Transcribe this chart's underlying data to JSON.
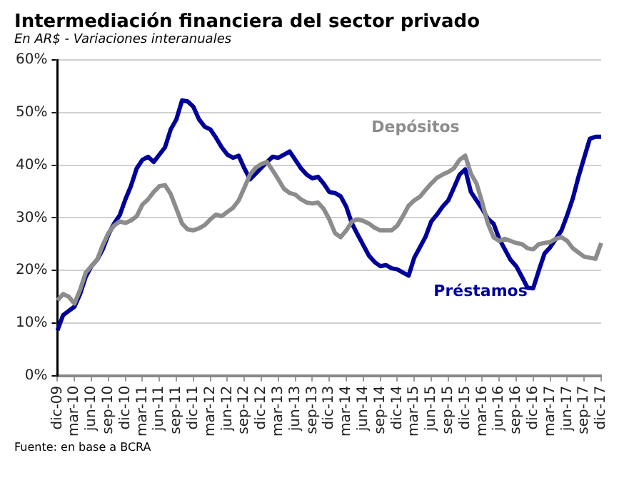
{
  "chart_data": {
    "type": "line",
    "title": "Intermediación financiera del sector privado",
    "subtitle": "En AR$ - Variaciones interanuales",
    "categories": [
      "dic-09",
      null,
      null,
      "mar-10",
      null,
      null,
      "jun-10",
      null,
      null,
      "sep-10",
      null,
      null,
      "dic-10",
      null,
      null,
      "mar-11",
      null,
      null,
      "jun-11",
      null,
      null,
      "sep-11",
      null,
      null,
      "dic-11",
      null,
      null,
      "mar-12",
      null,
      null,
      "jun-12",
      null,
      null,
      "sep-12",
      null,
      null,
      "dic-12",
      null,
      null,
      "mar-13",
      null,
      null,
      "jun-13",
      null,
      null,
      "sep-13",
      null,
      null,
      "dic-13",
      null,
      null,
      "mar-14",
      null,
      null,
      "jun-14",
      null,
      null,
      "sep-14",
      null,
      null,
      "dic-14",
      null,
      null,
      "mar-15",
      null,
      null,
      "jun-15",
      null,
      null,
      "sep-15",
      null,
      null,
      "dic-15",
      null,
      null,
      "mar-16",
      null,
      null,
      "jun-16",
      null,
      null,
      "sep-16",
      null,
      null,
      "dic-16",
      null,
      null,
      "mar-17",
      null,
      null,
      "jun-17",
      null,
      null,
      "sep-17",
      null,
      null,
      "dic-17"
    ],
    "series": [
      {
        "name": "Depósitos",
        "color": "#8c8c8c",
        "values": [
          14.3,
          15.5,
          15,
          13.7,
          16.3,
          19.6,
          20.8,
          22,
          24.8,
          27.1,
          28.5,
          29.3,
          29,
          29.5,
          30.3,
          32.5,
          33.5,
          34.9,
          36,
          36.2,
          34.5,
          31.7,
          28.9,
          27.8,
          27.6,
          28,
          28.6,
          29.7,
          30.6,
          30.3,
          31.1,
          31.9,
          33.3,
          35.7,
          38.2,
          39.5,
          40.2,
          40.6,
          39,
          37.3,
          35.5,
          34.7,
          34.4,
          33.5,
          32.9,
          32.7,
          32.9,
          31.7,
          29.7,
          27.1,
          26.3,
          27.6,
          29.3,
          29.7,
          29.4,
          28.9,
          28.1,
          27.6,
          27.6,
          27.6,
          28.5,
          30.3,
          32.3,
          33.3,
          34,
          35.3,
          36.5,
          37.6,
          38.2,
          38.7,
          39.4,
          41,
          41.8,
          38.4,
          36.5,
          32.9,
          28.9,
          26.3,
          25.6,
          26,
          25.6,
          25.2,
          25,
          24.2,
          24,
          25,
          25.2,
          25.4,
          26,
          26.3,
          25.6,
          24.2,
          23.4,
          22.6,
          22.4,
          22.2,
          25.2
        ]
      },
      {
        "name": "Préstamos",
        "color": "#000099",
        "values": [
          8.6,
          11.5,
          12.3,
          13.1,
          15.5,
          18.8,
          20.8,
          22,
          24,
          26.8,
          28.9,
          30.5,
          33.5,
          36.1,
          39.4,
          41,
          41.6,
          40.6,
          42,
          43.4,
          46.8,
          48.7,
          52.3,
          52.1,
          51.1,
          48.7,
          47.3,
          46.8,
          45.2,
          43.4,
          42,
          41.4,
          41.8,
          39.4,
          37.3,
          38.4,
          39.5,
          40.6,
          41.6,
          41.4,
          42,
          42.6,
          41,
          39.4,
          38.2,
          37.5,
          37.8,
          36.5,
          34.9,
          34.7,
          34.1,
          32.1,
          28.9,
          26.8,
          24.8,
          22.8,
          21.6,
          20.8,
          21,
          20.4,
          20.2,
          19.6,
          19,
          22.4,
          24.4,
          26.4,
          29.3,
          30.6,
          32.1,
          33.3,
          35.7,
          38.2,
          39.2,
          34.9,
          33.3,
          31.7,
          29.8,
          28.9,
          26,
          24,
          22,
          20.8,
          18.8,
          16.7,
          16.6,
          20,
          23.2,
          24.4,
          26,
          27.6,
          30.5,
          33.7,
          37.8,
          41.4,
          45,
          45.4,
          45.4
        ]
      }
    ],
    "ylim": [
      0,
      60
    ],
    "yticks": [
      {
        "value": 0,
        "label": "0%"
      },
      {
        "value": 10,
        "label": "10%"
      },
      {
        "value": 20,
        "label": "20%"
      },
      {
        "value": 30,
        "label": "30%"
      },
      {
        "value": 40,
        "label": "40%"
      },
      {
        "value": 50,
        "label": "50%"
      },
      {
        "value": 60,
        "label": "60%"
      }
    ],
    "grid": "y",
    "legend": false,
    "marker": "none",
    "line_style": "solid",
    "annotations": [
      "Fuente: en base a BCRA"
    ]
  }
}
